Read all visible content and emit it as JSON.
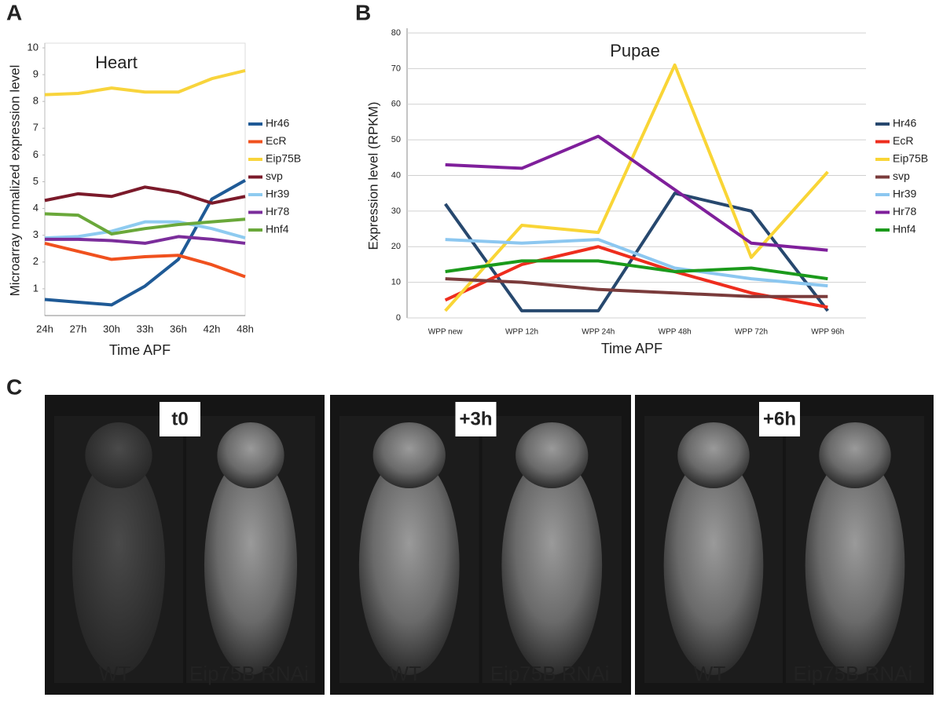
{
  "panel_labels": [
    "A",
    "B",
    "C"
  ],
  "chart_data": [
    {
      "type": "line",
      "title": "Heart",
      "y_label": "Microarray normalized expression level",
      "x_label": "Time APF",
      "categories": [
        "24h",
        "27h",
        "30h",
        "33h",
        "36h",
        "42h",
        "48h"
      ],
      "ylim": [
        0,
        10
      ],
      "yticks": [
        1,
        2,
        3,
        4,
        5,
        6,
        7,
        8,
        9,
        10
      ],
      "grid": false,
      "legend": "right",
      "series": [
        {
          "name": "Hr46",
          "color": "#1f5a96",
          "values": [
            0.6,
            0.5,
            0.4,
            1.1,
            2.1,
            4.35,
            5.05
          ]
        },
        {
          "name": "EcR",
          "color": "#f0511e",
          "values": [
            2.7,
            2.4,
            2.1,
            2.2,
            2.25,
            1.9,
            1.45
          ]
        },
        {
          "name": "Eip75B",
          "color": "#f8d43c",
          "values": [
            8.25,
            8.3,
            8.5,
            8.35,
            8.35,
            8.85,
            9.15
          ]
        },
        {
          "name": "svp",
          "color": "#7b1a2a",
          "values": [
            4.3,
            4.55,
            4.45,
            4.8,
            4.6,
            4.2,
            4.45
          ]
        },
        {
          "name": "Hr39",
          "color": "#8ecbf0",
          "values": [
            2.9,
            2.95,
            3.15,
            3.5,
            3.5,
            3.25,
            2.9
          ]
        },
        {
          "name": "Hr78",
          "color": "#7b2d9b",
          "values": [
            2.85,
            2.85,
            2.8,
            2.7,
            2.95,
            2.85,
            2.7
          ]
        },
        {
          "name": "Hnf4",
          "color": "#6aa83a",
          "values": [
            3.8,
            3.75,
            3.05,
            3.25,
            3.4,
            3.5,
            3.6
          ]
        }
      ]
    },
    {
      "type": "line",
      "title": "Pupae",
      "y_label": "Expression level (RPKM)",
      "x_label": "Time APF",
      "categories": [
        "WPP new",
        "WPP 12h",
        "WPP 24h",
        "WPP 48h",
        "WPP 72h",
        "WPP 96h"
      ],
      "ylim": [
        0,
        80
      ],
      "yticks": [
        0,
        10,
        20,
        30,
        40,
        50,
        60,
        70,
        80
      ],
      "grid": true,
      "legend": "right",
      "series": [
        {
          "name": "Hr46",
          "color": "#27486e",
          "values": [
            32,
            2,
            2,
            35,
            30,
            2
          ]
        },
        {
          "name": "EcR",
          "color": "#ee2d1e",
          "values": [
            5,
            15,
            20,
            13,
            7,
            3
          ]
        },
        {
          "name": "Eip75B",
          "color": "#f9d536",
          "values": [
            2,
            26,
            24,
            71,
            17,
            41
          ]
        },
        {
          "name": "svp",
          "color": "#7a3b3b",
          "values": [
            11,
            10,
            8,
            7,
            6,
            6
          ]
        },
        {
          "name": "Hr39",
          "color": "#8cc7f0",
          "values": [
            22,
            21,
            22,
            14,
            11,
            9
          ]
        },
        {
          "name": "Hr78",
          "color": "#7f1f9b",
          "values": [
            43,
            42,
            51,
            36,
            21,
            19
          ]
        },
        {
          "name": "Hnf4",
          "color": "#1b9a1b",
          "values": [
            13,
            16,
            16,
            13,
            14,
            11
          ]
        }
      ]
    }
  ],
  "images": [
    {
      "time": "t0",
      "left": "WT",
      "right": "Eip75B RNAi"
    },
    {
      "time": "+3h",
      "left": "WT",
      "right": "Eip75B RNAi"
    },
    {
      "time": "+6h",
      "left": "WT",
      "right": "Eip75B RNAi"
    }
  ]
}
